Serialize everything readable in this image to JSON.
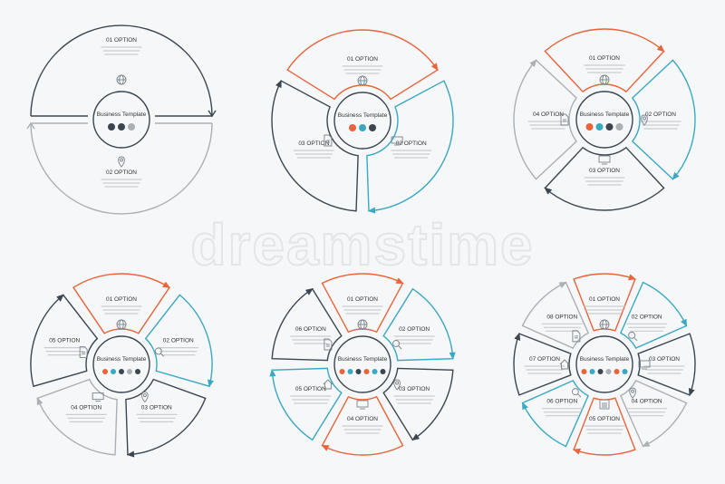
{
  "watermark": "dreamstime",
  "colors": {
    "dark": "#3b4650",
    "orange": "#e8643c",
    "blue": "#3aa8c1",
    "gray": "#a9b0b6",
    "text": "#333333"
  },
  "diagrams": [
    {
      "center_label": "Business Template",
      "segments": [
        {
          "label": "01 OPTION",
          "color": "#3b4650",
          "icon": "globe-icon"
        },
        {
          "label": "02 OPTION",
          "color": "#a9b0b6",
          "icon": "pin-icon"
        }
      ]
    },
    {
      "center_label": "Business Template",
      "segments": [
        {
          "label": "01 OPTION",
          "color": "#e8643c",
          "icon": "globe-icon"
        },
        {
          "label": "02 OPTION",
          "color": "#3aa8c1",
          "icon": "monitor-icon"
        },
        {
          "label": "03 OPTION",
          "color": "#3b4650",
          "icon": "document-icon"
        }
      ]
    },
    {
      "center_label": "Business Template",
      "segments": [
        {
          "label": "01 OPTION",
          "color": "#e8643c",
          "icon": "globe-icon"
        },
        {
          "label": "02 OPTION",
          "color": "#3aa8c1",
          "icon": "pin-icon"
        },
        {
          "label": "03 OPTION",
          "color": "#3b4650",
          "icon": "monitor-icon"
        },
        {
          "label": "04 OPTION",
          "color": "#a9b0b6",
          "icon": "document-icon"
        }
      ]
    },
    {
      "center_label": "Business Template",
      "segments": [
        {
          "label": "01 OPTION",
          "color": "#e8643c",
          "icon": "globe-icon"
        },
        {
          "label": "02 OPTION",
          "color": "#3aa8c1",
          "icon": "search-icon"
        },
        {
          "label": "03 OPTION",
          "color": "#3b4650",
          "icon": "pin-icon"
        },
        {
          "label": "04 OPTION",
          "color": "#a9b0b6",
          "icon": "monitor-icon"
        },
        {
          "label": "05 OPTION",
          "color": "#3b4650",
          "icon": "document-icon"
        }
      ]
    },
    {
      "center_label": "Business Template",
      "segments": [
        {
          "label": "01 OPTION",
          "color": "#e8643c",
          "icon": "globe-icon"
        },
        {
          "label": "02 OPTION",
          "color": "#3aa8c1",
          "icon": "search-icon"
        },
        {
          "label": "03 OPTION",
          "color": "#3b4650",
          "icon": "pin-icon"
        },
        {
          "label": "04 OPTION",
          "color": "#e8643c",
          "icon": "monitor-icon"
        },
        {
          "label": "05 OPTION",
          "color": "#3aa8c1",
          "icon": "home-icon"
        },
        {
          "label": "06 OPTION",
          "color": "#3b4650",
          "icon": "document-icon"
        }
      ]
    },
    {
      "center_label": "Business Template",
      "segments": [
        {
          "label": "01 OPTION",
          "color": "#e8643c",
          "icon": "globe-icon"
        },
        {
          "label": "02 OPTION",
          "color": "#3aa8c1",
          "icon": "search-icon"
        },
        {
          "label": "03 OPTION",
          "color": "#3b4650",
          "icon": "monitor-icon"
        },
        {
          "label": "04 OPTION",
          "color": "#a9b0b6",
          "icon": "pin-icon"
        },
        {
          "label": "05 OPTION",
          "color": "#e8643c",
          "icon": "chart-icon"
        },
        {
          "label": "06 OPTION",
          "color": "#3aa8c1",
          "icon": "search-icon"
        },
        {
          "label": "07 OPTION",
          "color": "#3b4650",
          "icon": "home-icon"
        },
        {
          "label": "08 OPTION",
          "color": "#a9b0b6",
          "icon": "document-icon"
        }
      ]
    }
  ]
}
